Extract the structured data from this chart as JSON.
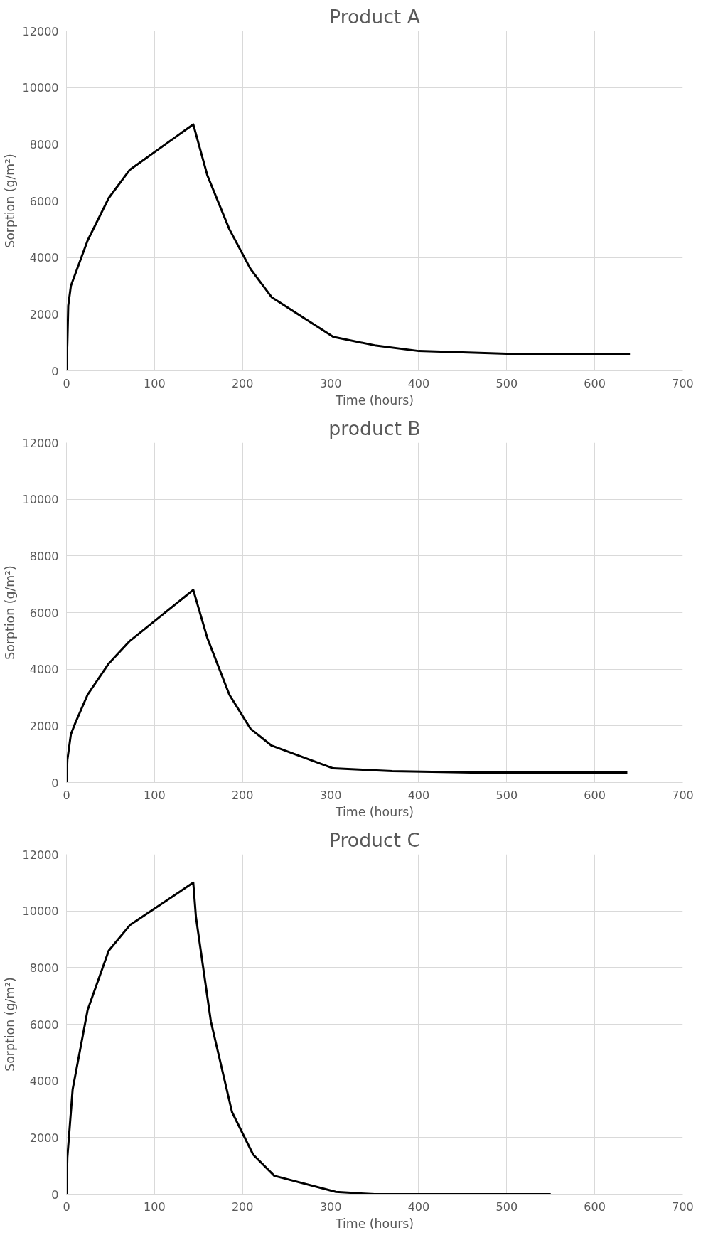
{
  "chart_data": [
    {
      "type": "line",
      "title": "Product A",
      "xlabel": "Time (hours)",
      "ylabel": "Sorption (g/m²)",
      "xlim": [
        0,
        700
      ],
      "xticks": [
        0,
        100,
        200,
        300,
        400,
        500,
        600,
        700
      ],
      "ylim": [
        0,
        12000
      ],
      "yticks": [
        0,
        2000,
        4000,
        6000,
        8000,
        10000,
        12000
      ],
      "grid": true,
      "line_style": "solid",
      "series": [
        {
          "color": "#000000",
          "x": [
            0,
            1,
            2,
            5,
            24,
            48,
            72,
            144,
            160,
            185,
            209,
            233,
            303,
            350,
            400,
            500,
            640
          ],
          "values": [
            0,
            1000,
            2300,
            3000,
            4600,
            6100,
            7100,
            8700,
            6900,
            5000,
            3600,
            2600,
            1200,
            900,
            700,
            600,
            600
          ]
        }
      ]
    },
    {
      "type": "line",
      "title": "product B",
      "xlabel": "Time (hours)",
      "ylabel": "Sorption (g/m²)",
      "xlim": [
        0,
        700
      ],
      "xticks": [
        0,
        100,
        200,
        300,
        400,
        500,
        600,
        700
      ],
      "ylim": [
        0,
        12000
      ],
      "yticks": [
        0,
        2000,
        4000,
        6000,
        8000,
        10000,
        12000
      ],
      "grid": true,
      "line_style": "solid",
      "series": [
        {
          "color": "#000000",
          "x": [
            0,
            1,
            5,
            10,
            24,
            48,
            72,
            144,
            160,
            185,
            209,
            233,
            303,
            370,
            460,
            637
          ],
          "values": [
            0,
            800,
            1700,
            2100,
            3100,
            4200,
            5000,
            6800,
            5100,
            3100,
            1900,
            1300,
            500,
            400,
            350,
            350
          ]
        }
      ]
    },
    {
      "type": "line",
      "title": "Product C",
      "xlabel": "Time (hours)",
      "ylabel": "Sorption (g/m²)",
      "xlim": [
        0,
        700
      ],
      "xticks": [
        0,
        100,
        200,
        300,
        400,
        500,
        600,
        700
      ],
      "ylim": [
        0,
        12000
      ],
      "yticks": [
        0,
        2000,
        4000,
        6000,
        8000,
        10000,
        12000
      ],
      "grid": true,
      "line_style": "solid",
      "series": [
        {
          "color": "#000000",
          "x": [
            0,
            1,
            7,
            24,
            48,
            72,
            144,
            147,
            164,
            188,
            212,
            236,
            306,
            350,
            550
          ],
          "values": [
            0,
            1300,
            3700,
            6500,
            8600,
            9500,
            11000,
            9800,
            6100,
            2900,
            1400,
            650,
            80,
            0,
            0
          ]
        }
      ]
    }
  ]
}
